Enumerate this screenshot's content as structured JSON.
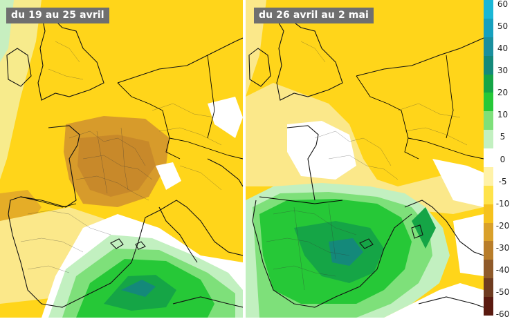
{
  "panels": {
    "left": {
      "title": "du 19 au 25 avril"
    },
    "right": {
      "title": "du 26 avril au 2 mai"
    }
  },
  "legend": {
    "labels": [
      "60",
      "50",
      "40",
      "30",
      "20",
      "10",
      "5",
      "0",
      "-5",
      "-10",
      "-20",
      "-30",
      "-40",
      "-50",
      "-60"
    ],
    "colors": [
      "#1ab7d6",
      "#16a0be",
      "#1a8f9e",
      "#14897a",
      "#15a546",
      "#26c837",
      "#7ee07a",
      "#c2f0c0",
      "#ffffff",
      "#fff2a8",
      "#ffe34a",
      "#f6c21c",
      "#d9a02a",
      "#b87d2a",
      "#8f5a2a",
      "#6e3b20",
      "#5a1a10"
    ],
    "colors_meaning": "teal/green = excédent, white = 0, yellow/orange/brown = déficit"
  }
}
